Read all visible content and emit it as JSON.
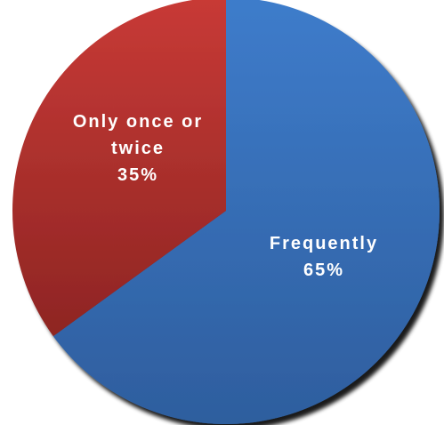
{
  "chart_data": {
    "type": "pie",
    "title": "",
    "slices": [
      {
        "label_lines": [
          "Frequently"
        ],
        "percent_label": "65%",
        "value": 65,
        "color": "#3E7CCB",
        "color_dark": "#2E5E9E"
      },
      {
        "label_lines": [
          "Only once or",
          "twice"
        ],
        "percent_label": "35%",
        "value": 35,
        "color": "#C83A36",
        "color_dark": "#8E2523"
      }
    ],
    "start_angle_deg": 0,
    "direction": "clockwise",
    "data_labels": "inside",
    "legend": "none"
  }
}
